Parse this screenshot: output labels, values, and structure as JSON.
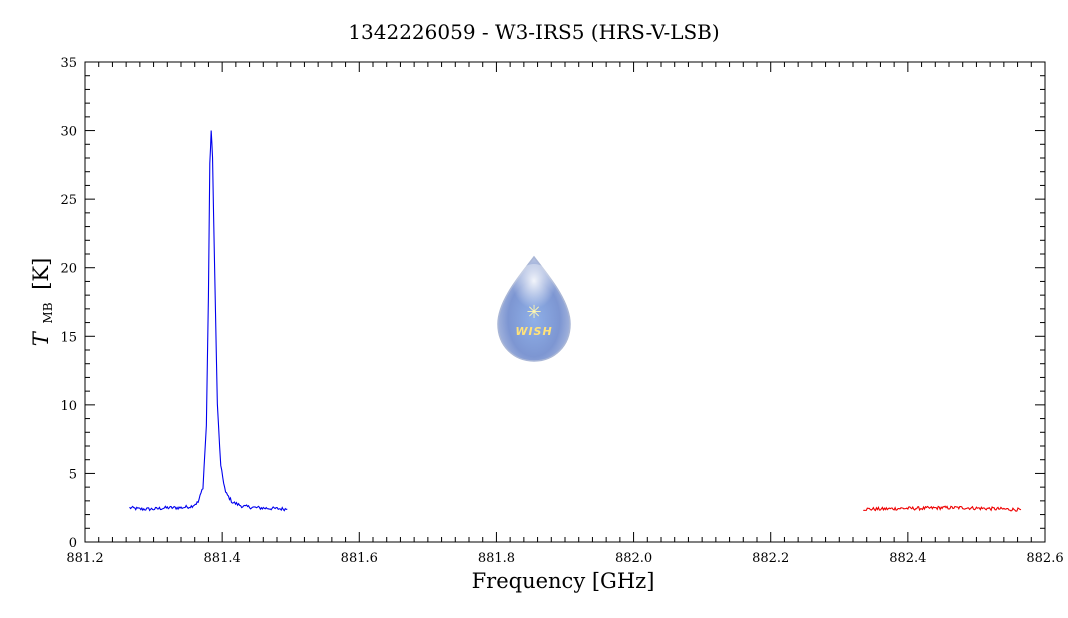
{
  "chart_data": {
    "type": "line",
    "title": "1342226059 - W3-IRS5 (HRS-V-LSB)",
    "xlabel": "Frequency [GHz]",
    "ylabel_main": "T",
    "ylabel_sub": "MB",
    "ylabel_unit": "[K]",
    "xlim": [
      881.2,
      882.6
    ],
    "ylim": [
      0,
      35
    ],
    "xticks": [
      "881.2",
      "881.4",
      "881.6",
      "881.8",
      "882.0",
      "882.2",
      "882.4",
      "882.6"
    ],
    "yticks": [
      "0",
      "5",
      "10",
      "15",
      "20",
      "25",
      "30",
      "35"
    ],
    "grid": false,
    "series": [
      {
        "color": "#0000ee",
        "x": [
          881.265,
          881.28,
          881.3,
          881.32,
          881.34,
          881.355,
          881.365,
          881.372,
          881.377,
          881.38,
          881.382,
          881.384,
          881.386,
          881.389,
          881.393,
          881.398,
          881.405,
          881.415,
          881.43,
          881.45,
          881.47,
          881.495
        ],
        "y": [
          2.5,
          2.4,
          2.4,
          2.5,
          2.5,
          2.6,
          2.9,
          4.0,
          8.5,
          18.0,
          27.5,
          30.0,
          28.0,
          20.0,
          10.0,
          5.5,
          3.6,
          2.9,
          2.6,
          2.5,
          2.45,
          2.4
        ]
      },
      {
        "color": "#ee0000",
        "x": [
          882.335,
          882.36,
          882.39,
          882.42,
          882.45,
          882.48,
          882.51,
          882.54,
          882.565
        ],
        "y": [
          2.4,
          2.4,
          2.45,
          2.45,
          2.5,
          2.5,
          2.45,
          2.4,
          2.35
        ]
      }
    ]
  },
  "logo": {
    "text": "WISH"
  }
}
